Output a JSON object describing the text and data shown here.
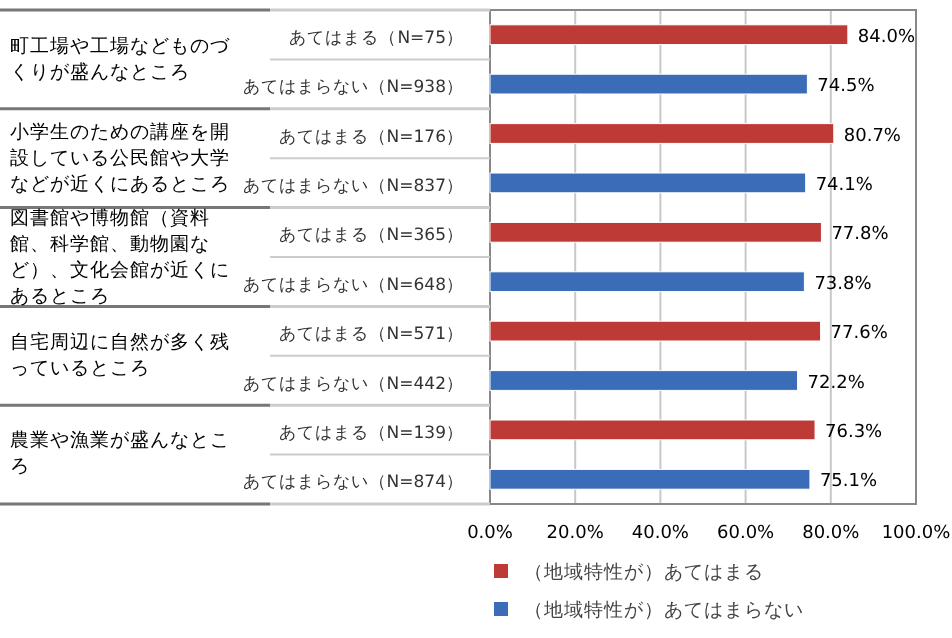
{
  "chart_data": {
    "type": "bar",
    "orientation": "horizontal",
    "categories": [
      "あてはまる（N=75）",
      "あてはまらない（N=938）",
      "あてはまる（N=176）",
      "あてはまらない（N=837）",
      "あてはまる（N=365）",
      "あてはまらない（N=648）",
      "あてはまる（N=571）",
      "あてはまらない（N=442）",
      "あてはまる（N=139）",
      "あてはまらない（N=874）"
    ],
    "series": [
      {
        "name": "（地域特性が）あてはまる",
        "color": "#be3a37",
        "values": [
          84.0,
          null,
          80.7,
          null,
          77.8,
          null,
          77.6,
          null,
          76.3,
          null
        ],
        "value_labels": [
          "84.0%",
          null,
          "80.7%",
          null,
          "77.8%",
          null,
          "77.6%",
          null,
          "76.3%",
          null
        ]
      },
      {
        "name": "（地域特性が）あてはまらない",
        "color": "#3a6cb8",
        "values": [
          null,
          74.5,
          null,
          74.1,
          null,
          73.8,
          null,
          72.2,
          null,
          75.1
        ],
        "value_labels": [
          null,
          "74.5%",
          null,
          "74.1%",
          null,
          "73.8%",
          null,
          "72.2%",
          null,
          "75.1%"
        ]
      }
    ],
    "annotations": [
      "町工場や工場などものづくりが盛んなところ",
      "小学生のための講座を開設している公民館や大学などが近くにあるところ",
      "図書館や博物館（資料館、科学館、動物園など）、文化会館が近くにあるところ",
      "自宅周辺に自然が多く残っているところ",
      "農業や漁業が盛んなところ"
    ],
    "xlim": [
      0,
      100
    ],
    "xticks": [
      {
        "value": 0,
        "label": "0.0%"
      },
      {
        "value": 20,
        "label": "20.0%"
      },
      {
        "value": 40,
        "label": "40.0%"
      },
      {
        "value": 60,
        "label": "60.0%"
      },
      {
        "value": 80,
        "label": "80.0%"
      },
      {
        "value": 100,
        "label": "100.0%"
      }
    ],
    "grid": "x",
    "legend": "bottom"
  }
}
